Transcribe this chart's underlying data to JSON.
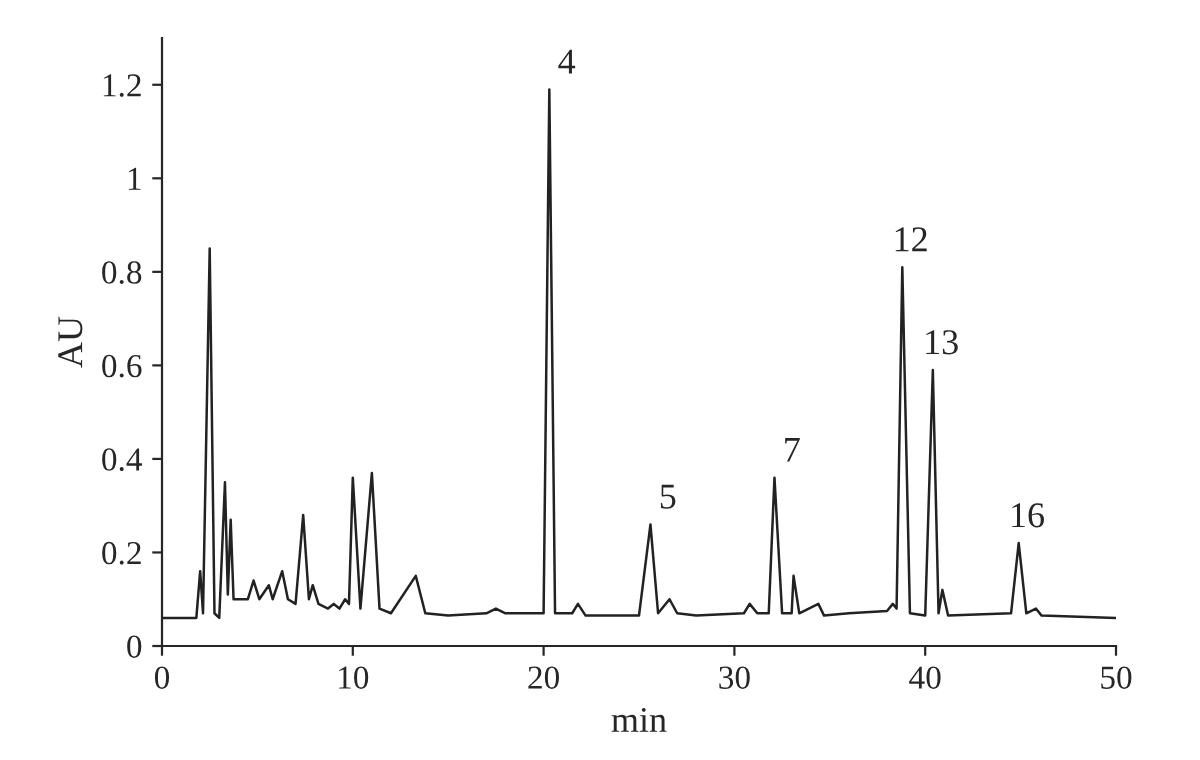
{
  "chart_data": {
    "type": "line",
    "xlabel": "min",
    "ylabel": "AU",
    "xlim": [
      0,
      50
    ],
    "ylim": [
      0,
      1.3
    ],
    "xticks": [
      0,
      10,
      20,
      30,
      40,
      50
    ],
    "yticks": [
      0,
      {
        "value": 0.2,
        "label": "0.2"
      },
      {
        "value": 0.4,
        "label": "0.4"
      },
      {
        "value": 0.6,
        "label": "0.6"
      },
      {
        "value": 0.8,
        "label": "0.8"
      },
      1,
      {
        "value": 1.2,
        "label": "1.2"
      }
    ],
    "grid": false,
    "legend": false,
    "marker": "none",
    "line_style": "solid",
    "series": [
      {
        "color": "#222222",
        "x": [
          0,
          1.8,
          2.0,
          2.15,
          2.5,
          2.75,
          3.0,
          3.3,
          3.45,
          3.6,
          3.75,
          4.5,
          4.8,
          5.1,
          5.6,
          5.8,
          6.3,
          6.6,
          7.0,
          7.4,
          7.7,
          7.9,
          8.2,
          8.7,
          9.0,
          9.3,
          9.6,
          9.8,
          10.0,
          10.4,
          11.0,
          11.4,
          12.0,
          13.3,
          13.8,
          15,
          17,
          17.5,
          18,
          19.5,
          20.0,
          20.3,
          20.6,
          21.5,
          21.8,
          22.2,
          25,
          25.6,
          26.0,
          26.6,
          27.0,
          28,
          30.5,
          30.8,
          31.2,
          31.8,
          32.1,
          32.5,
          33.0,
          33.1,
          33.4,
          34.4,
          34.7,
          36,
          38,
          38.3,
          38.5,
          38.8,
          39.2,
          40.0,
          40.4,
          40.7,
          40.9,
          41.2,
          44.5,
          44.9,
          45.3,
          45.8,
          46.1,
          50
        ],
        "values": [
          0.06,
          0.06,
          0.16,
          0.07,
          0.85,
          0.07,
          0.06,
          0.35,
          0.11,
          0.27,
          0.1,
          0.1,
          0.14,
          0.1,
          0.13,
          0.1,
          0.16,
          0.1,
          0.09,
          0.28,
          0.1,
          0.13,
          0.09,
          0.08,
          0.09,
          0.08,
          0.1,
          0.09,
          0.36,
          0.08,
          0.37,
          0.08,
          0.07,
          0.15,
          0.07,
          0.065,
          0.07,
          0.08,
          0.07,
          0.07,
          0.07,
          1.19,
          0.07,
          0.07,
          0.09,
          0.065,
          0.065,
          0.26,
          0.07,
          0.1,
          0.07,
          0.065,
          0.07,
          0.09,
          0.07,
          0.07,
          0.36,
          0.07,
          0.07,
          0.15,
          0.07,
          0.09,
          0.065,
          0.07,
          0.075,
          0.09,
          0.08,
          0.81,
          0.07,
          0.065,
          0.59,
          0.07,
          0.12,
          0.065,
          0.07,
          0.22,
          0.07,
          0.08,
          0.065,
          0.06
        ]
      }
    ],
    "annotations": [
      {
        "text": "4",
        "x": 20.3,
        "y": 1.19
      },
      {
        "text": "5",
        "x": 25.6,
        "y": 0.26
      },
      {
        "text": "7",
        "x": 32.1,
        "y": 0.36
      },
      {
        "text": "12",
        "x": 38.8,
        "y": 0.81
      },
      {
        "text": "13",
        "x": 40.4,
        "y": 0.59
      },
      {
        "text": "16",
        "x": 44.9,
        "y": 0.22
      }
    ]
  }
}
